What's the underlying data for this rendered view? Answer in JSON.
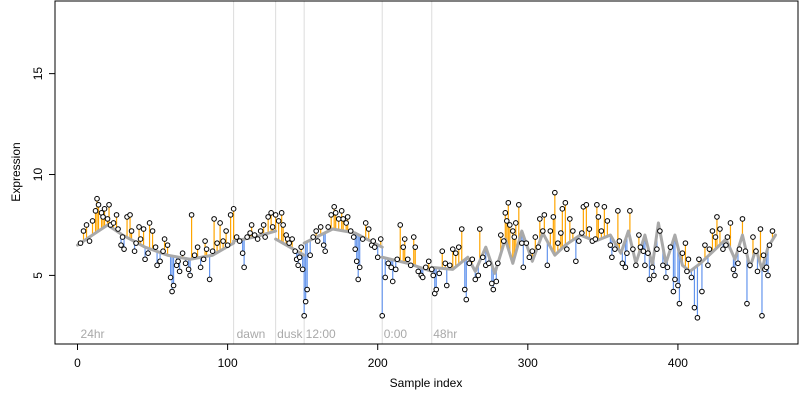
{
  "chart_data": {
    "type": "scatter",
    "title": "",
    "xlabel": "Sample index",
    "ylabel": "Expression",
    "xlim": [
      -15,
      480
    ],
    "ylim": [
      1.6,
      18.6
    ],
    "x_ticks": [
      0,
      100,
      200,
      300,
      400
    ],
    "y_ticks": [
      5,
      10,
      15
    ],
    "phase_boundaries": [
      104,
      132,
      151,
      203,
      236
    ],
    "phase_labels": [
      {
        "x": 2,
        "text": "24hr"
      },
      {
        "x": 106,
        "text": "dawn"
      },
      {
        "x": 133,
        "text": "dusk"
      },
      {
        "x": 152,
        "text": "12:00"
      },
      {
        "x": 204,
        "text": "0:00"
      },
      {
        "x": 237,
        "text": "48hr"
      }
    ],
    "colors": {
      "above_baseline": "#ffa500",
      "below_baseline": "#6495ed",
      "baseline": "#a9a9a9",
      "point_fill": "#ffffff",
      "point_stroke": "#000000",
      "phase_line": "#dcdcdc",
      "phase_text": "#a9a9a9"
    },
    "baseline_segments": [
      [
        [
          0,
          6.5
        ],
        [
          10,
          7.0
        ],
        [
          20,
          7.5
        ],
        [
          30,
          7.0
        ],
        [
          45,
          6.4
        ],
        [
          60,
          6.0
        ],
        [
          75,
          5.8
        ],
        [
          90,
          6.0
        ],
        [
          104,
          6.6
        ]
      ],
      [
        [
          104,
          6.7
        ],
        [
          118,
          6.9
        ],
        [
          132,
          7.2
        ]
      ],
      [
        [
          132,
          6.8
        ],
        [
          151,
          6.0
        ]
      ],
      [
        [
          151,
          6.6
        ],
        [
          170,
          7.3
        ],
        [
          185,
          7.1
        ],
        [
          203,
          6.4
        ]
      ],
      [
        [
          203,
          5.9
        ],
        [
          220,
          5.6
        ],
        [
          236,
          5.2
        ]
      ],
      [
        [
          236,
          5.4
        ],
        [
          250,
          5.3
        ],
        [
          260,
          5.9
        ],
        [
          265,
          5.2
        ],
        [
          272,
          6.4
        ],
        [
          278,
          5.1
        ],
        [
          285,
          6.8
        ],
        [
          290,
          5.6
        ],
        [
          296,
          7.2
        ],
        [
          303,
          5.7
        ],
        [
          310,
          7.1
        ],
        [
          318,
          6.0
        ],
        [
          325,
          6.5
        ],
        [
          335,
          7.0
        ],
        [
          345,
          6.7
        ],
        [
          355,
          7.0
        ],
        [
          362,
          6.1
        ],
        [
          367,
          7.2
        ],
        [
          372,
          5.6
        ],
        [
          378,
          7.0
        ],
        [
          383,
          5.5
        ],
        [
          387,
          7.6
        ],
        [
          392,
          5.6
        ],
        [
          398,
          7.0
        ],
        [
          403,
          5.5
        ],
        [
          408,
          5.2
        ],
        [
          415,
          5.6
        ],
        [
          425,
          6.3
        ],
        [
          432,
          6.8
        ],
        [
          438,
          5.8
        ],
        [
          443,
          7.0
        ],
        [
          448,
          5.4
        ],
        [
          452,
          6.3
        ],
        [
          456,
          5.3
        ],
        [
          460,
          6.4
        ],
        [
          465,
          7.0
        ]
      ]
    ],
    "points": [
      [
        2,
        6.6
      ],
      [
        4,
        7.2
      ],
      [
        6,
        7.5
      ],
      [
        8,
        6.7
      ],
      [
        10,
        7.7
      ],
      [
        12,
        8.2
      ],
      [
        13,
        8.8
      ],
      [
        14,
        8.5
      ],
      [
        16,
        8.1
      ],
      [
        17,
        7.9
      ],
      [
        18,
        8.3
      ],
      [
        20,
        7.8
      ],
      [
        21,
        8.5
      ],
      [
        22,
        7.5
      ],
      [
        24,
        7.6
      ],
      [
        26,
        8.0
      ],
      [
        27,
        7.3
      ],
      [
        29,
        6.5
      ],
      [
        30,
        6.9
      ],
      [
        31,
        6.3
      ],
      [
        33,
        7.9
      ],
      [
        35,
        8.0
      ],
      [
        36,
        7.2
      ],
      [
        38,
        6.2
      ],
      [
        39,
        6.6
      ],
      [
        41,
        7.4
      ],
      [
        42,
        6.8
      ],
      [
        44,
        7.3
      ],
      [
        45,
        5.8
      ],
      [
        47,
        6.1
      ],
      [
        48,
        7.6
      ],
      [
        50,
        7.2
      ],
      [
        52,
        6.4
      ],
      [
        53,
        5.5
      ],
      [
        55,
        5.7
      ],
      [
        57,
        6.2
      ],
      [
        58,
        6.8
      ],
      [
        60,
        6.5
      ],
      [
        62,
        4.9
      ],
      [
        63,
        4.2
      ],
      [
        64,
        4.5
      ],
      [
        66,
        5.5
      ],
      [
        67,
        5.7
      ],
      [
        68,
        5.2
      ],
      [
        70,
        6.1
      ],
      [
        72,
        5.6
      ],
      [
        74,
        5.3
      ],
      [
        75,
        5.0
      ],
      [
        76,
        8.0
      ],
      [
        78,
        6.0
      ],
      [
        80,
        6.4
      ],
      [
        82,
        5.4
      ],
      [
        84,
        5.8
      ],
      [
        85,
        6.7
      ],
      [
        86,
        6.3
      ],
      [
        88,
        4.8
      ],
      [
        90,
        6.2
      ],
      [
        91,
        7.8
      ],
      [
        93,
        6.6
      ],
      [
        95,
        7.6
      ],
      [
        97,
        6.7
      ],
      [
        99,
        7.2
      ],
      [
        100,
        6.5
      ],
      [
        102,
        8.0
      ],
      [
        104,
        8.3
      ],
      [
        106,
        6.9
      ],
      [
        108,
        6.7
      ],
      [
        110,
        6.1
      ],
      [
        111,
        5.4
      ],
      [
        113,
        6.9
      ],
      [
        115,
        7.1
      ],
      [
        116,
        7.5
      ],
      [
        118,
        7.0
      ],
      [
        120,
        6.8
      ],
      [
        122,
        7.2
      ],
      [
        124,
        7.5
      ],
      [
        125,
        6.9
      ],
      [
        127,
        7.9
      ],
      [
        129,
        8.1
      ],
      [
        130,
        7.4
      ],
      [
        132,
        8.0
      ],
      [
        134,
        7.7
      ],
      [
        136,
        8.1
      ],
      [
        137,
        7.5
      ],
      [
        139,
        7.0
      ],
      [
        140,
        6.8
      ],
      [
        141,
        6.6
      ],
      [
        143,
        6.8
      ],
      [
        145,
        6.2
      ],
      [
        146,
        5.8
      ],
      [
        147,
        5.5
      ],
      [
        148,
        5.9
      ],
      [
        149,
        6.4
      ],
      [
        150,
        5.3
      ],
      [
        151,
        3.0
      ],
      [
        152,
        3.7
      ],
      [
        153,
        4.3
      ],
      [
        155,
        6.0
      ],
      [
        157,
        6.9
      ],
      [
        159,
        7.2
      ],
      [
        160,
        6.7
      ],
      [
        162,
        7.4
      ],
      [
        164,
        6.5
      ],
      [
        165,
        6.2
      ],
      [
        167,
        7.4
      ],
      [
        169,
        8.0
      ],
      [
        171,
        8.4
      ],
      [
        172,
        8.1
      ],
      [
        174,
        7.8
      ],
      [
        176,
        8.2
      ],
      [
        177,
        7.8
      ],
      [
        179,
        7.6
      ],
      [
        180,
        7.9
      ],
      [
        182,
        7.2
      ],
      [
        184,
        6.9
      ],
      [
        185,
        6.3
      ],
      [
        186,
        5.7
      ],
      [
        187,
        4.8
      ],
      [
        188,
        5.4
      ],
      [
        190,
        6.8
      ],
      [
        192,
        7.6
      ],
      [
        194,
        7.3
      ],
      [
        196,
        6.5
      ],
      [
        197,
        6.7
      ],
      [
        198,
        6.4
      ],
      [
        200,
        5.9
      ],
      [
        202,
        6.8
      ],
      [
        203,
        3.0
      ],
      [
        205,
        4.9
      ],
      [
        207,
        5.6
      ],
      [
        209,
        5.4
      ],
      [
        210,
        4.7
      ],
      [
        212,
        5.3
      ],
      [
        213,
        5.8
      ],
      [
        215,
        7.5
      ],
      [
        217,
        6.4
      ],
      [
        218,
        6.8
      ],
      [
        220,
        5.8
      ],
      [
        222,
        5.5
      ],
      [
        224,
        6.9
      ],
      [
        225,
        6.4
      ],
      [
        227,
        5.2
      ],
      [
        229,
        5.0
      ],
      [
        230,
        4.9
      ],
      [
        232,
        5.4
      ],
      [
        234,
        5.7
      ],
      [
        236,
        5.3
      ],
      [
        237,
        5.0
      ],
      [
        238,
        4.1
      ],
      [
        239,
        4.3
      ],
      [
        241,
        5.1
      ],
      [
        243,
        6.2
      ],
      [
        245,
        5.6
      ],
      [
        246,
        4.5
      ],
      [
        248,
        5.5
      ],
      [
        250,
        6.3
      ],
      [
        252,
        6.1
      ],
      [
        254,
        6.4
      ],
      [
        256,
        7.3
      ],
      [
        258,
        4.3
      ],
      [
        259,
        3.8
      ],
      [
        261,
        5.6
      ],
      [
        263,
        5.8
      ],
      [
        265,
        4.8
      ],
      [
        267,
        5.0
      ],
      [
        268,
        7.3
      ],
      [
        270,
        5.9
      ],
      [
        272,
        5.5
      ],
      [
        274,
        5.6
      ],
      [
        276,
        4.6
      ],
      [
        277,
        4.3
      ],
      [
        279,
        4.7
      ],
      [
        280,
        5.6
      ],
      [
        282,
        7.0
      ],
      [
        284,
        6.7
      ],
      [
        285,
        8.1
      ],
      [
        286,
        7.7
      ],
      [
        287,
        8.6
      ],
      [
        288,
        7.5
      ],
      [
        290,
        7.2
      ],
      [
        291,
        6.9
      ],
      [
        292,
        7.6
      ],
      [
        294,
        8.5
      ],
      [
        296,
        6.6
      ],
      [
        297,
        5.4
      ],
      [
        299,
        6.6
      ],
      [
        301,
        5.9
      ],
      [
        303,
        6.2
      ],
      [
        305,
        6.9
      ],
      [
        307,
        6.4
      ],
      [
        308,
        7.8
      ],
      [
        310,
        7.2
      ],
      [
        311,
        8.0
      ],
      [
        313,
        5.5
      ],
      [
        315,
        7.2
      ],
      [
        317,
        7.9
      ],
      [
        318,
        9.1
      ],
      [
        320,
        6.6
      ],
      [
        322,
        7.1
      ],
      [
        323,
        8.3
      ],
      [
        325,
        8.6
      ],
      [
        326,
        6.3
      ],
      [
        328,
        7.8
      ],
      [
        330,
        7.2
      ],
      [
        332,
        5.7
      ],
      [
        334,
        6.7
      ],
      [
        336,
        7.1
      ],
      [
        337,
        8.4
      ],
      [
        339,
        8.5
      ],
      [
        341,
        7.3
      ],
      [
        343,
        6.7
      ],
      [
        345,
        6.8
      ],
      [
        346,
        8.5
      ],
      [
        347,
        7.9
      ],
      [
        349,
        7.2
      ],
      [
        351,
        8.4
      ],
      [
        353,
        7.7
      ],
      [
        355,
        6.5
      ],
      [
        356,
        5.9
      ],
      [
        358,
        6.3
      ],
      [
        360,
        8.2
      ],
      [
        361,
        6.7
      ],
      [
        363,
        5.6
      ],
      [
        365,
        5.4
      ],
      [
        366,
        6.1
      ],
      [
        368,
        8.2
      ],
      [
        370,
        6.3
      ],
      [
        372,
        5.5
      ],
      [
        374,
        7.0
      ],
      [
        375,
        6.4
      ],
      [
        377,
        6.2
      ],
      [
        378,
        5.5
      ],
      [
        380,
        6.1
      ],
      [
        381,
        4.8
      ],
      [
        383,
        5.4
      ],
      [
        384,
        5.0
      ],
      [
        386,
        6.3
      ],
      [
        388,
        7.2
      ],
      [
        390,
        5.5
      ],
      [
        392,
        4.9
      ],
      [
        393,
        5.4
      ],
      [
        395,
        6.4
      ],
      [
        397,
        4.2
      ],
      [
        398,
        4.8
      ],
      [
        400,
        4.5
      ],
      [
        401,
        3.6
      ],
      [
        403,
        6.1
      ],
      [
        405,
        6.6
      ],
      [
        406,
        5.2
      ],
      [
        407,
        5.8
      ],
      [
        409,
        4.9
      ],
      [
        411,
        3.4
      ],
      [
        413,
        2.9
      ],
      [
        414,
        5.8
      ],
      [
        416,
        4.2
      ],
      [
        418,
        6.5
      ],
      [
        420,
        5.5
      ],
      [
        421,
        6.3
      ],
      [
        423,
        7.2
      ],
      [
        425,
        6.9
      ],
      [
        426,
        7.9
      ],
      [
        428,
        7.3
      ],
      [
        430,
        6.3
      ],
      [
        432,
        6.5
      ],
      [
        433,
        6.9
      ],
      [
        435,
        7.6
      ],
      [
        437,
        5.3
      ],
      [
        438,
        5.0
      ],
      [
        440,
        5.6
      ],
      [
        441,
        6.3
      ],
      [
        443,
        7.8
      ],
      [
        445,
        6.2
      ],
      [
        446,
        3.6
      ],
      [
        448,
        5.5
      ],
      [
        450,
        6.9
      ],
      [
        452,
        6.2
      ],
      [
        453,
        5.2
      ],
      [
        455,
        7.3
      ],
      [
        456,
        3.0
      ],
      [
        457,
        6.0
      ],
      [
        458,
        5.3
      ],
      [
        459,
        5.4
      ],
      [
        460,
        5.0
      ],
      [
        461,
        6.5
      ],
      [
        463,
        7.2
      ]
    ]
  }
}
